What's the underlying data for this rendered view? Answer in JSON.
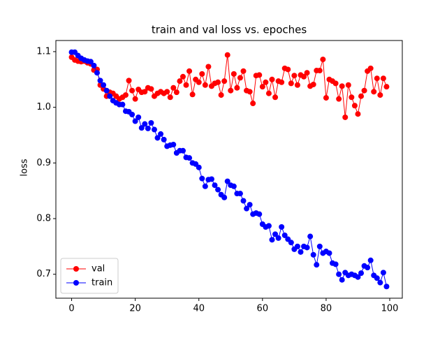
{
  "chart_data": {
    "type": "line",
    "title": "train and val loss vs. epoches",
    "y_label": "loss",
    "x": [
      0,
      1,
      2,
      3,
      4,
      5,
      6,
      7,
      8,
      9,
      10,
      11,
      12,
      13,
      14,
      15,
      16,
      17,
      18,
      19,
      20,
      21,
      22,
      23,
      24,
      25,
      26,
      27,
      28,
      29,
      30,
      31,
      32,
      33,
      34,
      35,
      36,
      37,
      38,
      39,
      40,
      41,
      42,
      43,
      44,
      45,
      46,
      47,
      48,
      49,
      50,
      51,
      52,
      53,
      54,
      55,
      56,
      57,
      58,
      59,
      60,
      61,
      62,
      63,
      64,
      65,
      66,
      67,
      68,
      69,
      70,
      71,
      72,
      73,
      74,
      75,
      76,
      77,
      78,
      79,
      80,
      81,
      82,
      83,
      84,
      85,
      86,
      87,
      88,
      89,
      90,
      91,
      92,
      93,
      94,
      95,
      96,
      97,
      98,
      99
    ],
    "series": [
      {
        "name": "val",
        "color": "#ff0000",
        "values": [
          1.09,
          1.085,
          1.083,
          1.082,
          1.083,
          1.08,
          1.078,
          1.067,
          1.068,
          1.04,
          1.033,
          1.02,
          1.027,
          1.025,
          1.02,
          1.015,
          1.018,
          1.022,
          1.048,
          1.03,
          1.015,
          1.032,
          1.027,
          1.028,
          1.035,
          1.033,
          1.02,
          1.025,
          1.028,
          1.025,
          1.028,
          1.018,
          1.035,
          1.027,
          1.047,
          1.055,
          1.04,
          1.065,
          1.023,
          1.05,
          1.045,
          1.06,
          1.04,
          1.073,
          1.038,
          1.043,
          1.045,
          1.022,
          1.047,
          1.094,
          1.03,
          1.06,
          1.035,
          1.053,
          1.065,
          1.03,
          1.028,
          1.007,
          1.057,
          1.058,
          1.037,
          1.045,
          1.025,
          1.05,
          1.018,
          1.047,
          1.045,
          1.07,
          1.068,
          1.043,
          1.057,
          1.04,
          1.058,
          1.055,
          1.062,
          1.038,
          1.041,
          1.066,
          1.066,
          1.086,
          1.017,
          1.05,
          1.047,
          1.043,
          1.015,
          1.038,
          0.982,
          1.04,
          1.018,
          1.003,
          0.988,
          1.02,
          1.03,
          1.065,
          1.07,
          1.028,
          1.052,
          1.022,
          1.052,
          1.037
        ]
      },
      {
        "name": "train",
        "color": "#0000ff",
        "values": [
          1.099,
          1.099,
          1.093,
          1.088,
          1.085,
          1.083,
          1.082,
          1.075,
          1.062,
          1.048,
          1.04,
          1.03,
          1.02,
          1.012,
          1.008,
          1.005,
          1.005,
          0.993,
          0.992,
          0.987,
          0.975,
          0.982,
          0.963,
          0.97,
          0.962,
          0.972,
          0.96,
          0.945,
          0.952,
          0.942,
          0.93,
          0.932,
          0.933,
          0.918,
          0.922,
          0.922,
          0.91,
          0.909,
          0.9,
          0.898,
          0.892,
          0.872,
          0.858,
          0.87,
          0.871,
          0.86,
          0.852,
          0.843,
          0.838,
          0.867,
          0.86,
          0.858,
          0.845,
          0.845,
          0.832,
          0.818,
          0.825,
          0.808,
          0.81,
          0.808,
          0.79,
          0.785,
          0.787,
          0.762,
          0.772,
          0.765,
          0.785,
          0.77,
          0.763,
          0.757,
          0.745,
          0.75,
          0.74,
          0.75,
          0.748,
          0.768,
          0.735,
          0.717,
          0.75,
          0.738,
          0.741,
          0.738,
          0.72,
          0.718,
          0.7,
          0.69,
          0.703,
          0.698,
          0.7,
          0.698,
          0.695,
          0.702,
          0.715,
          0.712,
          0.725,
          0.698,
          0.693,
          0.685,
          0.703,
          0.678
        ]
      }
    ],
    "xlim": [
      -4.95,
      103.95
    ],
    "xticks": [
      0,
      20,
      40,
      60,
      80,
      100
    ],
    "ylim": [
      0.657,
      1.12
    ],
    "yticks": [
      0.7,
      0.8,
      0.9,
      {
        "value": 1,
        "label": "1.0"
      },
      1.1
    ],
    "legend": "lower left"
  }
}
